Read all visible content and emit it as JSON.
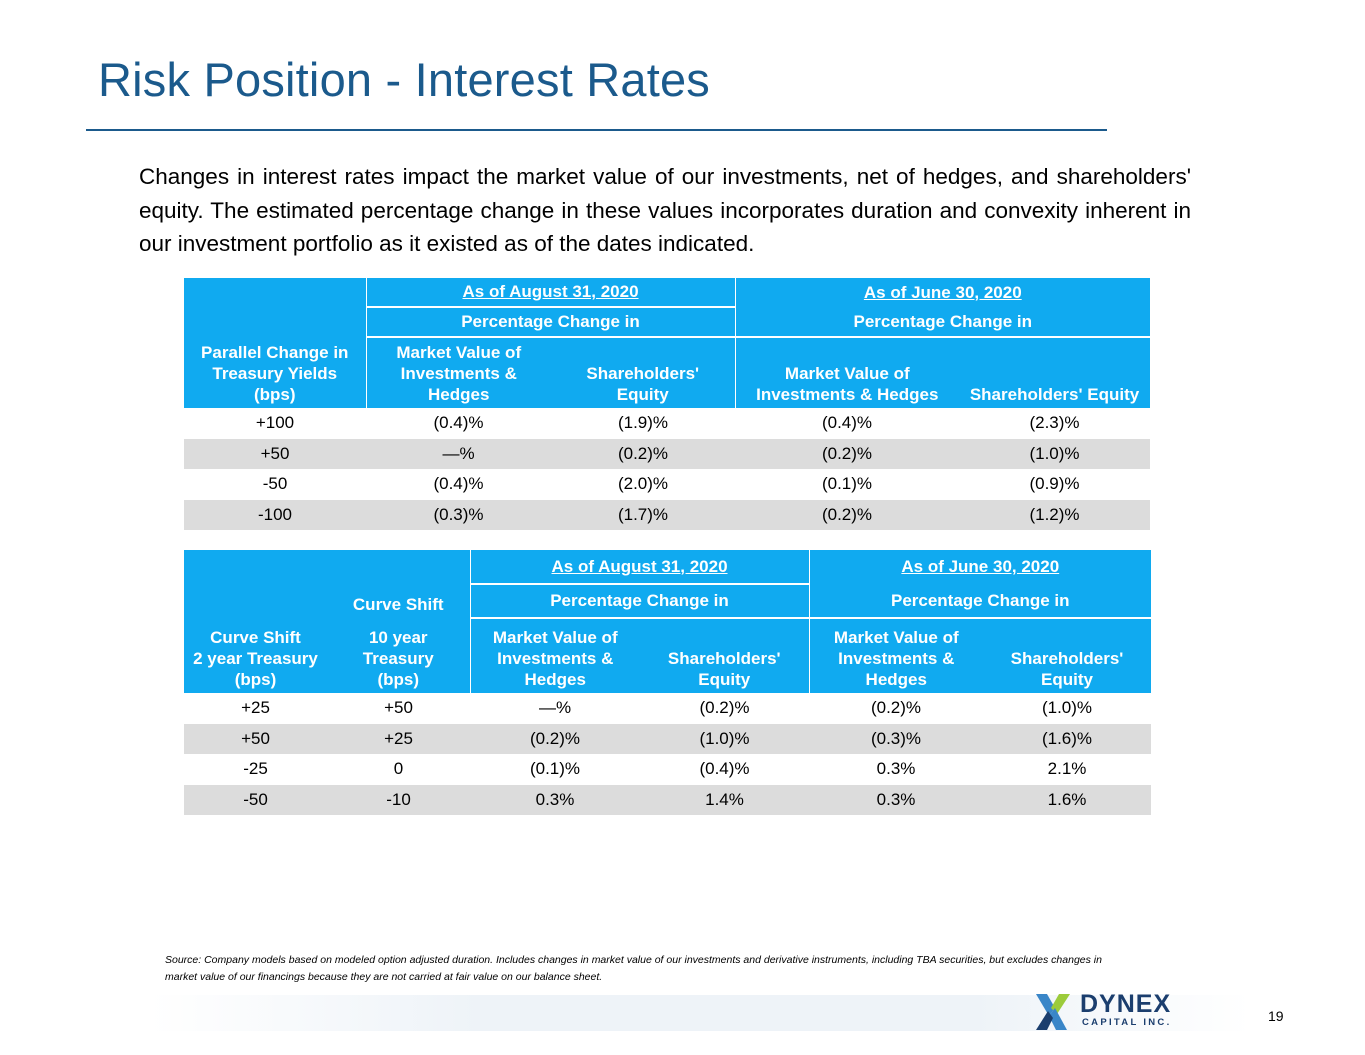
{
  "slide": {
    "title": "Risk Position - Interest Rates",
    "intro": "Changes in interest rates impact the market value of our investments, net of hedges, and shareholders' equity. The estimated percentage change in these values incorporates duration and convexity inherent in our investment portfolio as it existed as of the dates indicated.",
    "page_number": "19"
  },
  "table1": {
    "period1": "As of August 31, 2020",
    "period2": "As of June 30, 2020",
    "pct_change_label_1": "Percentage Change in",
    "pct_change_label_2": "Percentage Change in",
    "col_shift": "Parallel Change in\nTreasury Yields\n(bps)",
    "col_mv1": "Market Value of\nInvestments &\nHedges",
    "col_eq1": "Shareholders'\nEquity",
    "col_mv2": "Market Value of\nInvestments & Hedges",
    "col_eq2": "Shareholders' Equity",
    "rows": [
      {
        "shift": "+100",
        "mv1": "(0.4)%",
        "eq1": "(1.9)%",
        "mv2": "(0.4)%",
        "eq2": "(2.3)%"
      },
      {
        "shift": "+50",
        "mv1": "—%",
        "eq1": "(0.2)%",
        "mv2": "(0.2)%",
        "eq2": "(1.0)%"
      },
      {
        "shift": "-50",
        "mv1": "(0.4)%",
        "eq1": "(2.0)%",
        "mv2": "(0.1)%",
        "eq2": "(0.9)%"
      },
      {
        "shift": "-100",
        "mv1": "(0.3)%",
        "eq1": "(1.7)%",
        "mv2": "(0.2)%",
        "eq2": "(1.2)%"
      }
    ]
  },
  "table2": {
    "period1": "As of August 31, 2020",
    "period2": "As of June 30, 2020",
    "pct_change_label_1": "Percentage Change in",
    "pct_change_label_2": "Percentage Change in",
    "col_2yr": "Curve Shift\n2 year Treasury\n(bps)",
    "col_10yr_top": "Curve Shift",
    "col_10yr": "10 year\nTreasury\n(bps)",
    "col_mv1": "Market Value of\nInvestments &\nHedges",
    "col_eq1": "Shareholders'\nEquity",
    "col_mv2": "Market Value of\nInvestments &\nHedges",
    "col_eq2": "Shareholders'\nEquity",
    "rows": [
      {
        "y2": "+25",
        "y10": "+50",
        "mv1": "—%",
        "eq1": "(0.2)%",
        "mv2": "(0.2)%",
        "eq2": "(1.0)%"
      },
      {
        "y2": "+50",
        "y10": "+25",
        "mv1": "(0.2)%",
        "eq1": "(1.0)%",
        "mv2": "(0.3)%",
        "eq2": "(1.6)%"
      },
      {
        "y2": "-25",
        "y10": "0",
        "mv1": "(0.1)%",
        "eq1": "(0.4)%",
        "mv2": "0.3%",
        "eq2": "2.1%"
      },
      {
        "y2": "-50",
        "y10": "-10",
        "mv1": "0.3%",
        "eq1": "1.4%",
        "mv2": "0.3%",
        "eq2": "1.6%"
      }
    ]
  },
  "footnote": "Source: Company models based on modeled option adjusted duration. Includes changes in market value of our investments and derivative instruments, including TBA securities, but excludes changes in market value of our financings because they are not carried at fair value on our balance sheet.",
  "logo": {
    "name": "DYNEX",
    "subtitle": "CAPITAL INC.",
    "colors": {
      "navy": "#1b3e6e",
      "accent_blue": "#3a86c8",
      "accent_green": "#9ccb3b"
    }
  },
  "colors": {
    "title": "#1b5a8c",
    "header_fill": "#10aaf0",
    "row_shade": "#dcdcdc"
  }
}
